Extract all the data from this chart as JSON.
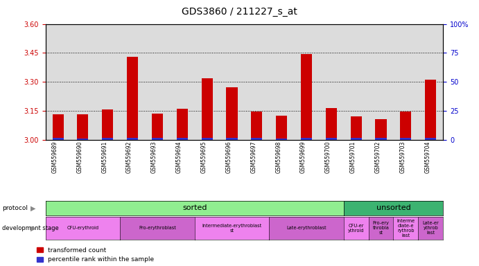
{
  "title": "GDS3860 / 211227_s_at",
  "samples": [
    "GSM559689",
    "GSM559690",
    "GSM559691",
    "GSM559692",
    "GSM559693",
    "GSM559694",
    "GSM559695",
    "GSM559696",
    "GSM559697",
    "GSM559698",
    "GSM559699",
    "GSM559700",
    "GSM559701",
    "GSM559702",
    "GSM559703",
    "GSM559704"
  ],
  "red_values": [
    3.13,
    3.13,
    3.155,
    3.43,
    3.135,
    3.16,
    3.32,
    3.27,
    3.145,
    3.125,
    3.445,
    3.165,
    3.12,
    3.105,
    3.145,
    3.31
  ],
  "blue_values": [
    0.008,
    0.007,
    0.008,
    0.01,
    0.008,
    0.009,
    0.01,
    0.009,
    0.008,
    0.007,
    0.01,
    0.009,
    0.008,
    0.009,
    0.009,
    0.01
  ],
  "ylim_left": [
    3.0,
    3.6
  ],
  "ylim_right": [
    0,
    100
  ],
  "yticks_left": [
    3.0,
    3.15,
    3.3,
    3.45,
    3.6
  ],
  "yticks_right": [
    0,
    25,
    50,
    75,
    100
  ],
  "bar_width": 0.45,
  "base": 3.0,
  "red_color": "#CC0000",
  "blue_color": "#3333CC",
  "bar_area_bg": "#DCDCDC",
  "grid_linestyle": ":",
  "grid_color": "black",
  "grid_linewidth": 0.7,
  "tick_color_left": "#CC0000",
  "tick_color_right": "#0000CC",
  "ticklabel_fontsize": 7,
  "sample_label_fontsize": 5.5,
  "protocol_sorted_n": 12,
  "protocol_sorted_color": "#90EE90",
  "protocol_unsorted_color": "#3CB371",
  "dev_stages": [
    {
      "label": "CFU-erythroid",
      "start": 0,
      "end": 3,
      "color": "#EE82EE"
    },
    {
      "label": "Pro-erythroblast",
      "start": 3,
      "end": 6,
      "color": "#CC66CC"
    },
    {
      "label": "Intermediate-erythroblast\nst",
      "start": 6,
      "end": 9,
      "color": "#EE82EE"
    },
    {
      "label": "Late-erythroblast",
      "start": 9,
      "end": 12,
      "color": "#CC66CC"
    },
    {
      "label": "CFU-er\nythroid",
      "start": 12,
      "end": 13,
      "color": "#EE82EE"
    },
    {
      "label": "Pro-ery\nthrobla\nst",
      "start": 13,
      "end": 14,
      "color": "#CC66CC"
    },
    {
      "label": "Interme\ndiate-e\nrythrob\nlast",
      "start": 14,
      "end": 15,
      "color": "#EE82EE"
    },
    {
      "label": "Late-er\nythrob\nlast",
      "start": 15,
      "end": 16,
      "color": "#CC66CC"
    }
  ],
  "legend_labels": [
    "transformed count",
    "percentile rank within the sample"
  ]
}
